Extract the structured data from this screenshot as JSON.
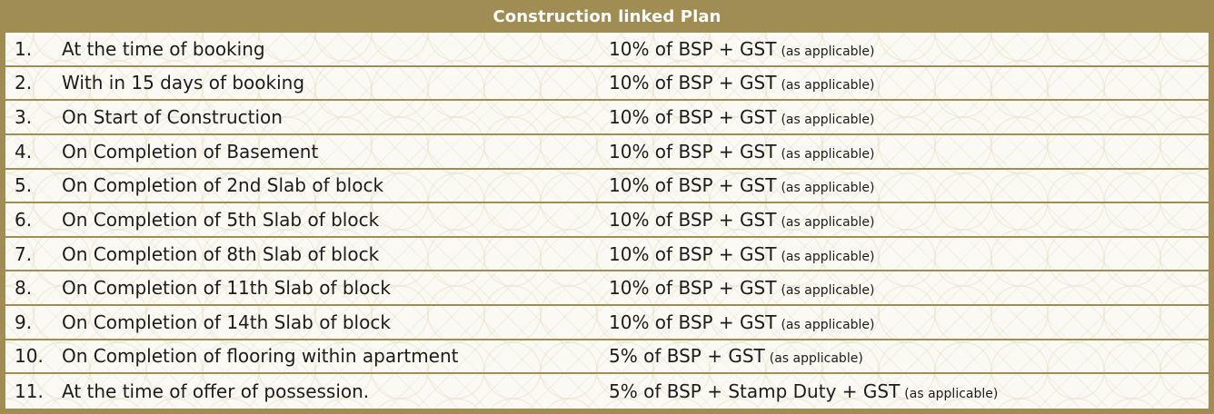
{
  "title": "Construction linked Plan",
  "rows": [
    {
      "num": "1.",
      "description": "At the time of booking",
      "payment": "10% of BSP + GST",
      "note": "(as applicable)"
    },
    {
      "num": "2.",
      "description": "With in 15 days of booking",
      "payment": "10% of BSP + GST",
      "note": "(as applicable)"
    },
    {
      "num": "3.",
      "description": "On Start of Construction",
      "payment": "10% of BSP + GST",
      "note": "(as applicable)"
    },
    {
      "num": "4.",
      "description": "On Completion of Basement",
      "payment": "10% of BSP + GST",
      "note": "(as applicable)"
    },
    {
      "num": "5.",
      "description": "On Completion of 2nd Slab of block",
      "payment": "10% of BSP + GST",
      "note": "(as applicable)"
    },
    {
      "num": "6.",
      "description": "On Completion of 5th Slab of block",
      "payment": "10% of BSP + GST",
      "note": "(as applicable)"
    },
    {
      "num": "7.",
      "description": "On Completion of 8th Slab of block",
      "payment": "10% of BSP + GST",
      "note": "(as applicable)"
    },
    {
      "num": "8.",
      "description": "On Completion of 11th Slab of block",
      "payment": "10% of BSP + GST",
      "note": "(as applicable)"
    },
    {
      "num": "9.",
      "description": "On Completion of 14th Slab of block",
      "payment": "10% of BSP + GST",
      "note": "(as applicable)"
    },
    {
      "num": "10.",
      "description": "On Completion of flooring within apartment",
      "payment": "5% of BSP + GST",
      "note": "(as applicable)"
    },
    {
      "num": "11.",
      "description": "At the time of offer of possession.",
      "payment": "5% of BSP + Stamp Duty + GST",
      "note": "(as applicable)"
    }
  ],
  "colors": {
    "border": "#a08d54",
    "title_text": "#ffffff",
    "row_background": "#fbf9f3",
    "body_text": "#1c1c1c"
  }
}
